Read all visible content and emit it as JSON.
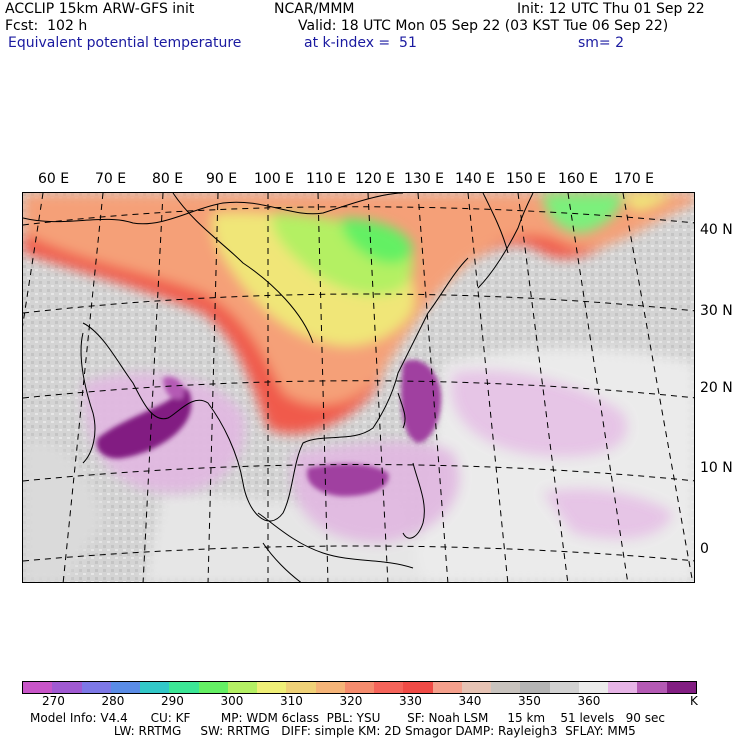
{
  "header": {
    "model": "ACCLIP 15km ARW-GFS init",
    "fcst": "Fcst:  102 h",
    "org": "NCAR/MMM",
    "init": "Init: 12 UTC Thu 01 Sep 22",
    "valid": "Valid: 18 UTC Mon 05 Sep 22 (03 KST Tue 06 Sep 22)",
    "field": "Equivalent potential temperature",
    "level": "at k-index =  51",
    "smooth": "sm= 2"
  },
  "map": {
    "lon_labels": [
      "60 E",
      "70 E",
      "80 E",
      "90 E",
      "100 E",
      "110 E",
      "120 E",
      "130 E",
      "140 E",
      "150 E",
      "160 E",
      "170 E"
    ],
    "lat_labels": [
      "40 N",
      "30 N",
      "20 N",
      "10 N",
      "0"
    ]
  },
  "colorbar": {
    "unit": "K",
    "labels": [
      "270",
      "280",
      "290",
      "300",
      "310",
      "320",
      "330",
      "340",
      "350",
      "360"
    ],
    "colors": [
      "#c855c8",
      "#a05ad2",
      "#7d78e6",
      "#5a8ce6",
      "#32c8c8",
      "#3ce696",
      "#64f064",
      "#b4f064",
      "#f0f078",
      "#f0d278",
      "#f5b478",
      "#f58c6e",
      "#f5645a",
      "#f04b46",
      "#f5a08c",
      "#e6c3b4",
      "#c8c3be",
      "#b4b4b4",
      "#d2d2d2",
      "#ebebeb",
      "#e6b4e6",
      "#b45ab4",
      "#821e82"
    ]
  },
  "footer": {
    "line1": "Model Info: V4.4      CU: KF        MP: WDM 6class  PBL: YSU       SF: Noah LSM     15 km    51 levels   90 sec",
    "line2": "                      LW: RRTMG     SW: RRTMG   DIFF: simple KM: 2D Smagor DAMP: Rayleigh3  SFLAY: MM5"
  }
}
